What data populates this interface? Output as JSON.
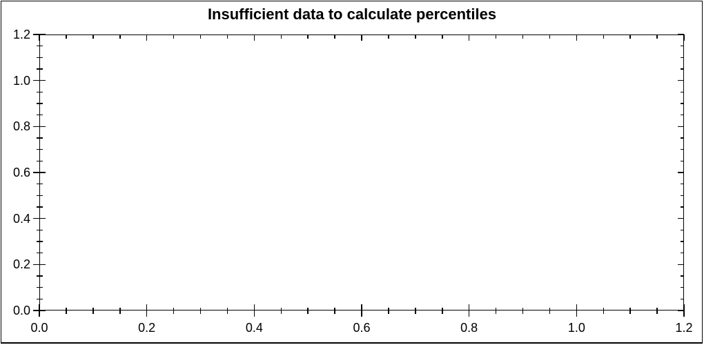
{
  "chart_data": {
    "type": "scatter",
    "title": "Insufficient data to calculate percentiles",
    "series": [],
    "data_points": [],
    "x_axis": {
      "min": 0.0,
      "max": 1.2,
      "major_tick_step": 0.2,
      "major_tick_labels": [
        "0.0",
        "0.2",
        "0.4",
        "0.6",
        "0.8",
        "1.0",
        "1.2"
      ],
      "minor_ticks_between_major": 3
    },
    "y_axis": {
      "min": 0.0,
      "max": 1.2,
      "major_tick_step": 0.2,
      "major_tick_labels": [
        "0.0",
        "0.2",
        "0.4",
        "0.6",
        "0.8",
        "1.0",
        "1.2"
      ],
      "minor_ticks_between_major": 3
    },
    "grid": false,
    "legend": "none",
    "colors": {
      "background": "#ffffff",
      "border": "#000000",
      "axis": "#000000",
      "text": "#000000"
    }
  }
}
